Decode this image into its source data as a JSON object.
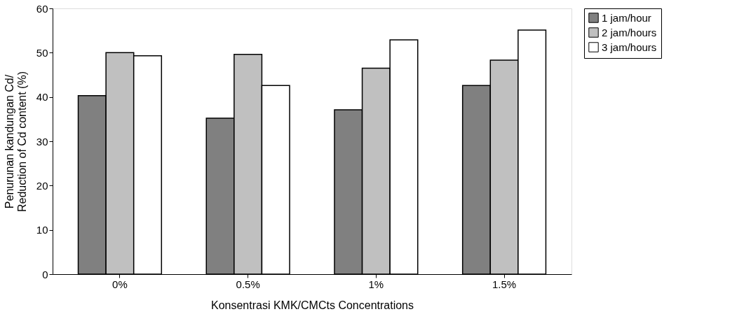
{
  "chart_data": {
    "type": "bar",
    "categories": [
      "0%",
      "0.5%",
      "1%",
      "1.5%"
    ],
    "xlabel": "Konsentrasi KMK/CMCts Concentrations",
    "ylabel": "Penurunan kandungan Cd/\nReduction of Cd content  (%)",
    "series": [
      {
        "name": "1 jam/hour",
        "color": "#808080",
        "values": [
          40.3,
          35.2,
          37.1,
          42.6
        ]
      },
      {
        "name": "2 jam/hours",
        "color": "#c0c0c0",
        "values": [
          50.0,
          49.6,
          46.5,
          48.3
        ]
      },
      {
        "name": "3 jam/hours",
        "color": "#ffffff",
        "values": [
          49.3,
          42.6,
          52.9,
          55.1
        ]
      }
    ],
    "ylim": [
      0,
      60
    ],
    "yticks": [
      0,
      10,
      20,
      30,
      40,
      50,
      60
    ],
    "grid": false,
    "legend": "right"
  }
}
